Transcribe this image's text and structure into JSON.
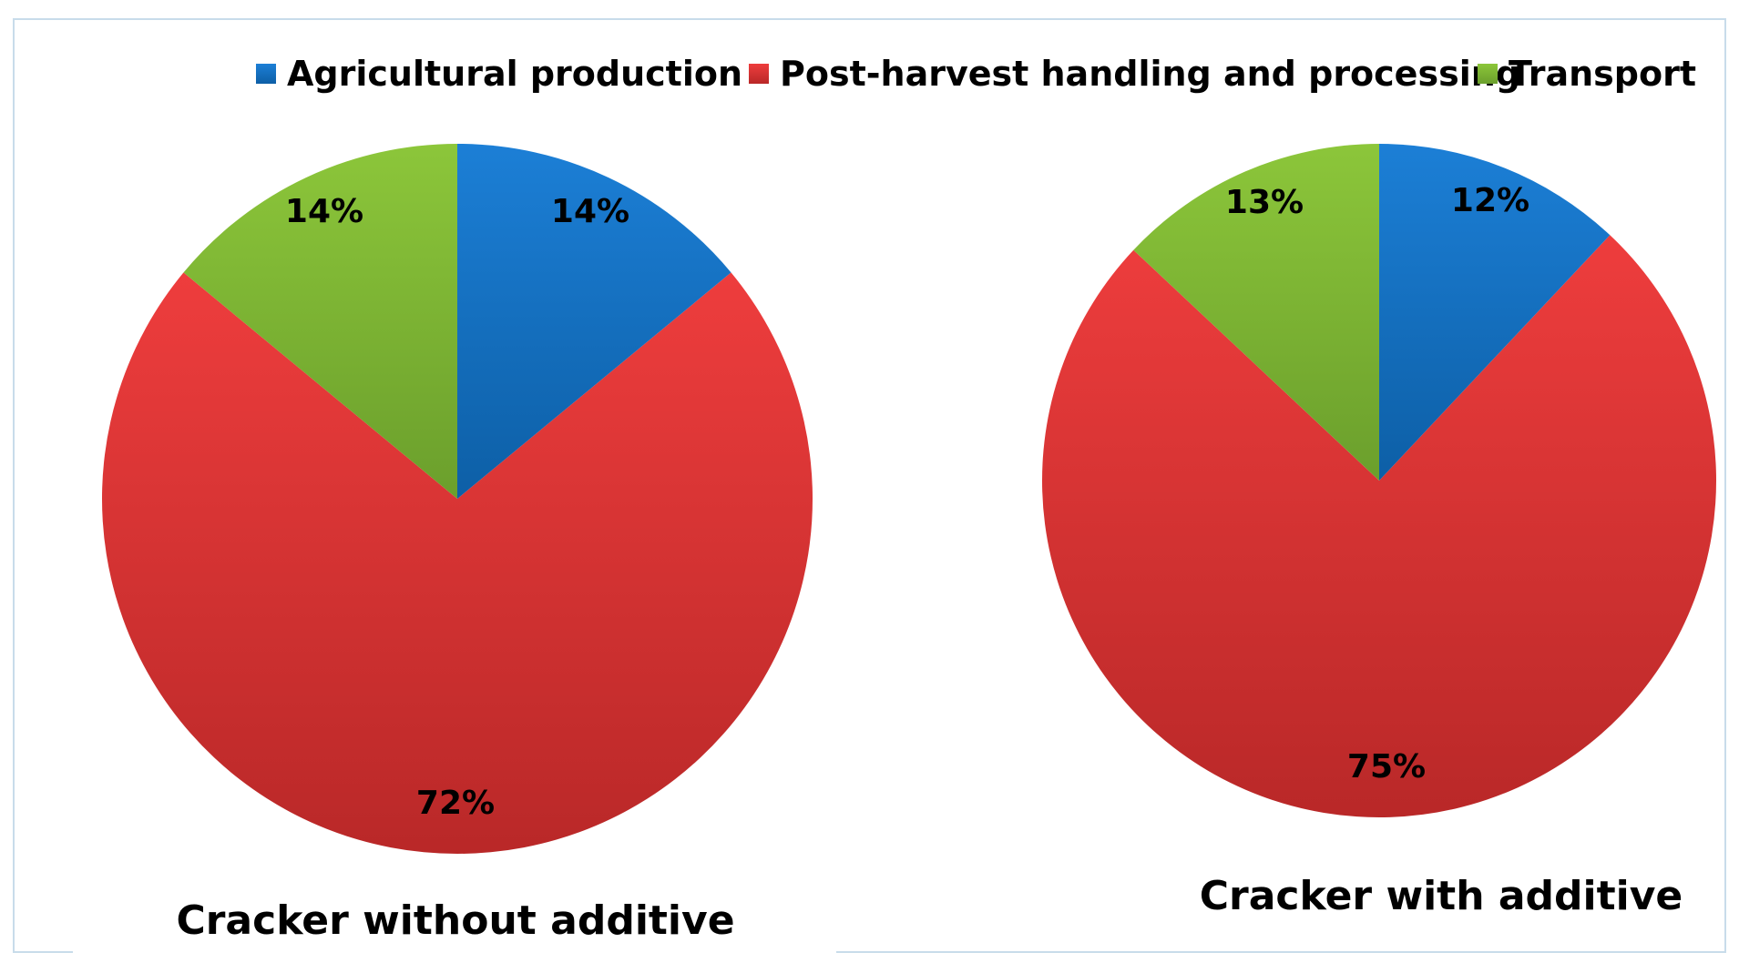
{
  "legend": [
    {
      "label": "Agricultural production",
      "color": "#1a6fbf"
    },
    {
      "label": "Post-harvest handling and processing",
      "color": "#e33b3b"
    },
    {
      "label": "Transport",
      "color": "#84c02a"
    }
  ],
  "chart_data": [
    {
      "type": "pie",
      "title": "Cracker without additive",
      "categories": [
        "Agricultural production",
        "Post-harvest handling and processing",
        "Transport"
      ],
      "values": [
        14,
        72,
        14
      ],
      "labels": [
        "14%",
        "72%",
        "14%"
      ],
      "legend_position": "top"
    },
    {
      "type": "pie",
      "title": "Cracker with additive",
      "categories": [
        "Agricultural production",
        "Post-harvest handling and processing",
        "Transport"
      ],
      "values": [
        12,
        75,
        13
      ],
      "labels": [
        "12%",
        "75%",
        "13%"
      ],
      "legend_position": "top"
    }
  ]
}
